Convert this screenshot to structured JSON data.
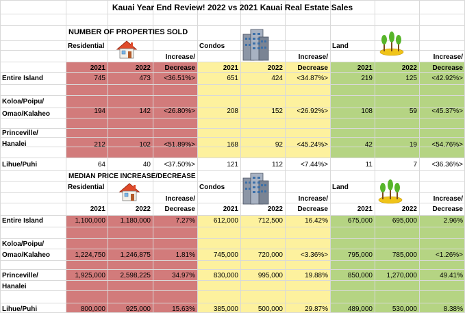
{
  "title": "Kauai Year End Review! 2022 vs 2021 Kauai Real Estate Sales",
  "colors": {
    "residential": "#d27b7b",
    "condos": "#fdf19e",
    "land": "#b5d483",
    "grid": "#d9d9d9"
  },
  "sections": [
    {
      "heading": "NUMBER OF PROPERTIES SOLD",
      "groups": [
        {
          "label": "Residential",
          "icon": "house-icon"
        },
        {
          "label": "Condos",
          "icon": "condo-building-icon"
        },
        {
          "label": "Land",
          "icon": "palm-trees-icon"
        }
      ],
      "col_headers": [
        "2021",
        "2022",
        "Increase/",
        "Decrease"
      ],
      "rows": [
        {
          "label": [
            "Entire Island"
          ],
          "values": [
            "745",
            "473",
            "<36.51%>",
            "651",
            "424",
            "<34.87%>",
            "219",
            "125",
            "<42.92%>"
          ]
        },
        {
          "label": [
            "Koloa/Poipu/",
            "Omao/Kalaheo"
          ],
          "values": [
            "194",
            "142",
            "<26.80%>",
            "208",
            "152",
            "<26.92%>",
            "108",
            "59",
            "<45.37%>"
          ]
        },
        {
          "label": [
            "Princeville/",
            "Hanalei"
          ],
          "values": [
            "212",
            "102",
            "<51.89%>",
            "168",
            "92",
            "<45.24%>",
            "42",
            "19",
            "<54.76%>"
          ]
        },
        {
          "label": [
            "Lihue/Puhi"
          ],
          "values": [
            "64",
            "40",
            "<37.50%>",
            "121",
            "112",
            "<7.44%>",
            "11",
            "7",
            "<36.36%>"
          ]
        }
      ]
    },
    {
      "heading": "MEDIAN PRICE INCREASE/DECREASE",
      "groups": [
        {
          "label": "Residential",
          "icon": "house-icon"
        },
        {
          "label": "Condos",
          "icon": "condo-building-icon"
        },
        {
          "label": "Land",
          "icon": "palm-trees-icon"
        }
      ],
      "col_headers": [
        "2021",
        "2022",
        "Increase/",
        "Decrease"
      ],
      "rows": [
        {
          "label": [
            "Entire Island"
          ],
          "values": [
            "1,100,000",
            "1,180,000",
            "7.27%",
            "612,000",
            "712,500",
            "16.42%",
            "675,000",
            "695,000",
            "2.96%"
          ]
        },
        {
          "label": [
            "Koloa/Poipu/",
            "Omao/Kalaheo"
          ],
          "values": [
            "1,224,750",
            "1,246,875",
            "1.81%",
            "745,000",
            "720,000",
            "<3.36%>",
            "795,000",
            "785,000",
            "<1.26%>"
          ]
        },
        {
          "label": [
            "Princeville/",
            "Hanalei"
          ],
          "values": [
            "1,925,000",
            "2,598,225",
            "34.97%",
            "830,000",
            "995,000",
            "19.88%",
            "850,000",
            "1,270,000",
            "49.41%"
          ]
        },
        {
          "label": [
            "Lihue/Puhi"
          ],
          "values": [
            "800,000",
            "925,000",
            "15.63%",
            "385,000",
            "500,000",
            "29.87%",
            "489,000",
            "530,000",
            "8.38%"
          ]
        }
      ]
    }
  ]
}
